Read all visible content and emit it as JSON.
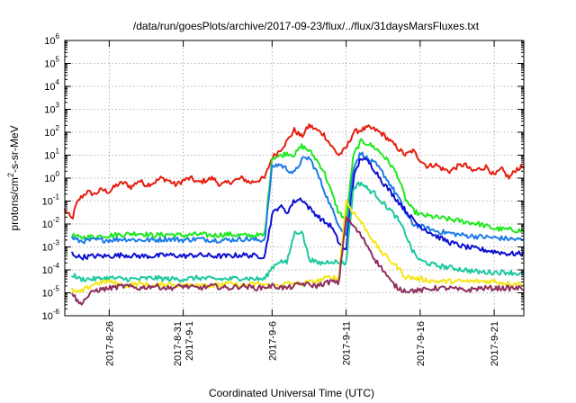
{
  "chart_data": {
    "type": "line",
    "title": "/data/run/goesPlots/archive/2017-09-23/flux/../flux/31daysMarsFluxes.txt",
    "xlabel": "Coordinated Universal Time (UTC)",
    "ylabel": "protons/cm2-s-sr-MeV",
    "ylabel_parts": {
      "base": "protons/cm",
      "sup": "2",
      "rest": "-s-sr-MeV"
    },
    "y_scale": "log",
    "ylim_exp": [
      -6,
      6
    ],
    "y_ticks": [
      {
        "exp": -6,
        "base": "10",
        "sup": "-6"
      },
      {
        "exp": -5,
        "base": "10",
        "sup": "-5"
      },
      {
        "exp": -4,
        "base": "10",
        "sup": "-4"
      },
      {
        "exp": -3,
        "base": "10",
        "sup": "-3"
      },
      {
        "exp": -2,
        "base": "10",
        "sup": "-2"
      },
      {
        "exp": -1,
        "base": "10",
        "sup": "-1"
      },
      {
        "exp": 0,
        "base": "10",
        "sup": "0"
      },
      {
        "exp": 1,
        "base": "10",
        "sup": "1"
      },
      {
        "exp": 2,
        "base": "10",
        "sup": "2"
      },
      {
        "exp": 3,
        "base": "10",
        "sup": "3"
      },
      {
        "exp": 4,
        "base": "10",
        "sup": "4"
      },
      {
        "exp": 5,
        "base": "10",
        "sup": "5"
      },
      {
        "exp": 6,
        "base": "10",
        "sup": "6"
      }
    ],
    "xlim": [
      "2017-08-23",
      "2017-09-23"
    ],
    "x_ticks": [
      {
        "date": "2017-08-26",
        "label": "2017-8-26"
      },
      {
        "date": "2017-08-31",
        "label": "2017-8-31",
        "label2": "2017-9-1"
      },
      {
        "date": "2017-09-06",
        "label": "2017-9-6"
      },
      {
        "date": "2017-09-11",
        "label": "2017-9-11"
      },
      {
        "date": "2017-09-16",
        "label": "2017-9-16"
      },
      {
        "date": "2017-09-21",
        "label": "2017-9-21"
      }
    ],
    "grid": true,
    "series": [
      {
        "color": "#e51e10",
        "x": [
          "2017-08-23T00:00",
          "2017-08-23T06:00",
          "2017-08-23T12:00",
          "2017-08-23T18:00",
          "2017-08-24T00:00",
          "2017-08-24T12:00",
          "2017-08-25T00:00",
          "2017-08-25T12:00",
          "2017-08-26T00:00",
          "2017-08-26T12:00",
          "2017-08-27T00:00",
          "2017-08-27T12:00",
          "2017-08-28T00:00",
          "2017-08-28T12:00",
          "2017-08-29T00:00",
          "2017-08-29T12:00",
          "2017-08-30T00:00",
          "2017-08-30T12:00",
          "2017-08-31T00:00",
          "2017-08-31T12:00",
          "2017-09-01T00:00",
          "2017-09-01T12:00",
          "2017-09-02T00:00",
          "2017-09-02T12:00",
          "2017-09-03T00:00",
          "2017-09-03T12:00",
          "2017-09-04T00:00",
          "2017-09-04T12:00",
          "2017-09-05T00:00",
          "2017-09-05T12:00",
          "2017-09-06T00:00",
          "2017-09-06T12:00",
          "2017-09-07T00:00",
          "2017-09-07T12:00",
          "2017-09-08T00:00",
          "2017-09-08T12:00",
          "2017-09-09T00:00",
          "2017-09-09T12:00",
          "2017-09-10T00:00",
          "2017-09-10T12:00",
          "2017-09-11T00:00",
          "2017-09-11T12:00",
          "2017-09-12T00:00",
          "2017-09-12T12:00",
          "2017-09-13T00:00",
          "2017-09-13T12:00",
          "2017-09-14T00:00",
          "2017-09-14T12:00",
          "2017-09-15T00:00",
          "2017-09-15T12:00",
          "2017-09-16T00:00",
          "2017-09-16T12:00",
          "2017-09-17T00:00",
          "2017-09-17T12:00",
          "2017-09-18T00:00",
          "2017-09-18T12:00",
          "2017-09-19T00:00",
          "2017-09-19T12:00",
          "2017-09-20T00:00",
          "2017-09-20T12:00",
          "2017-09-21T00:00",
          "2017-09-21T12:00",
          "2017-09-22T00:00",
          "2017-09-22T12:00",
          "2017-09-23T00:00"
        ],
        "log10_values": [
          -1.4,
          -1.6,
          -1.8,
          -1.2,
          -0.9,
          -0.6,
          -0.7,
          -0.5,
          -0.6,
          -0.3,
          -0.2,
          -0.4,
          -0.1,
          -0.3,
          -0.2,
          0.0,
          -0.1,
          -0.3,
          -0.1,
          0.0,
          -0.2,
          -0.1,
          0.0,
          -0.3,
          -0.2,
          -0.1,
          0.0,
          -0.2,
          -0.1,
          0.0,
          0.9,
          1.2,
          1.6,
          2.1,
          1.8,
          2.3,
          2.1,
          1.9,
          1.4,
          1.0,
          1.3,
          2.0,
          2.1,
          2.2,
          2.1,
          1.9,
          1.6,
          1.3,
          1.0,
          1.2,
          0.8,
          0.5,
          0.6,
          0.4,
          0.3,
          0.5,
          0.6,
          0.3,
          0.4,
          0.5,
          0.1,
          0.4,
          0.0,
          0.4,
          0.5
        ]
      },
      {
        "color": "#1ee81e",
        "x": [
          "2017-08-23T12:00",
          "2017-08-24T00:00",
          "2017-08-25T00:00",
          "2017-08-26T00:00",
          "2017-08-27T00:00",
          "2017-08-28T00:00",
          "2017-08-29T00:00",
          "2017-08-30T00:00",
          "2017-08-31T00:00",
          "2017-09-01T00:00",
          "2017-09-02T00:00",
          "2017-09-03T00:00",
          "2017-09-04T00:00",
          "2017-09-05T00:00",
          "2017-09-05T12:00",
          "2017-09-06T00:00",
          "2017-09-06T12:00",
          "2017-09-07T00:00",
          "2017-09-07T12:00",
          "2017-09-08T00:00",
          "2017-09-08T12:00",
          "2017-09-09T00:00",
          "2017-09-09T12:00",
          "2017-09-10T00:00",
          "2017-09-10T12:00",
          "2017-09-11T00:00",
          "2017-09-11T12:00",
          "2017-09-12T00:00",
          "2017-09-12T12:00",
          "2017-09-13T00:00",
          "2017-09-13T12:00",
          "2017-09-14T00:00",
          "2017-09-14T12:00",
          "2017-09-15T00:00",
          "2017-09-15T12:00",
          "2017-09-16T00:00",
          "2017-09-17T00:00",
          "2017-09-18T00:00",
          "2017-09-19T00:00",
          "2017-09-20T00:00",
          "2017-09-21T00:00",
          "2017-09-22T00:00",
          "2017-09-23T00:00"
        ],
        "log10_values": [
          -2.5,
          -2.6,
          -2.55,
          -2.5,
          -2.45,
          -2.4,
          -2.5,
          -2.45,
          -2.5,
          -2.45,
          -2.5,
          -2.45,
          -2.5,
          -2.5,
          -2.5,
          0.9,
          0.95,
          1.1,
          1.0,
          1.4,
          1.2,
          0.8,
          0.3,
          -0.6,
          -1.5,
          -1.8,
          1.0,
          1.6,
          1.5,
          1.3,
          1.0,
          0.6,
          0.1,
          -0.9,
          -1.4,
          -1.6,
          -1.7,
          -1.8,
          -1.9,
          -2.0,
          -2.2,
          -2.25,
          -2.3
        ]
      },
      {
        "color": "#1e7be8",
        "x": [
          "2017-08-23T12:00",
          "2017-08-24T00:00",
          "2017-08-25T00:00",
          "2017-08-26T00:00",
          "2017-08-27T00:00",
          "2017-08-28T00:00",
          "2017-08-29T00:00",
          "2017-08-30T00:00",
          "2017-08-31T00:00",
          "2017-09-01T00:00",
          "2017-09-02T00:00",
          "2017-09-03T00:00",
          "2017-09-04T00:00",
          "2017-09-05T00:00",
          "2017-09-05T12:00",
          "2017-09-06T00:00",
          "2017-09-06T12:00",
          "2017-09-07T00:00",
          "2017-09-07T12:00",
          "2017-09-08T00:00",
          "2017-09-08T12:00",
          "2017-09-09T00:00",
          "2017-09-09T12:00",
          "2017-09-10T00:00",
          "2017-09-10T12:00",
          "2017-09-11T00:00",
          "2017-09-11T12:00",
          "2017-09-12T00:00",
          "2017-09-12T12:00",
          "2017-09-13T00:00",
          "2017-09-13T12:00",
          "2017-09-14T00:00",
          "2017-09-14T12:00",
          "2017-09-15T00:00",
          "2017-09-15T12:00",
          "2017-09-16T00:00",
          "2017-09-17T00:00",
          "2017-09-18T00:00",
          "2017-09-19T00:00",
          "2017-09-20T00:00",
          "2017-09-21T00:00",
          "2017-09-22T00:00",
          "2017-09-23T00:00"
        ],
        "log10_values": [
          -2.6,
          -2.75,
          -2.7,
          -2.7,
          -2.65,
          -2.7,
          -2.7,
          -2.65,
          -2.7,
          -2.65,
          -2.7,
          -2.7,
          -2.65,
          -2.7,
          -2.7,
          0.5,
          0.6,
          0.4,
          0.2,
          0.8,
          0.9,
          0.3,
          -0.5,
          -1.3,
          -2.0,
          -2.5,
          0.5,
          1.1,
          0.8,
          0.6,
          0.2,
          -0.3,
          -0.8,
          -1.5,
          -2.0,
          -2.1,
          -2.3,
          -2.4,
          -2.5,
          -2.55,
          -2.6,
          -2.65,
          -2.7
        ]
      },
      {
        "color": "#1010d0",
        "x": [
          "2017-08-23T12:00",
          "2017-08-24T00:00",
          "2017-08-25T00:00",
          "2017-08-26T00:00",
          "2017-08-27T00:00",
          "2017-08-28T00:00",
          "2017-08-29T00:00",
          "2017-08-30T00:00",
          "2017-08-31T00:00",
          "2017-09-01T00:00",
          "2017-09-02T00:00",
          "2017-09-03T00:00",
          "2017-09-04T00:00",
          "2017-09-05T00:00",
          "2017-09-05T12:00",
          "2017-09-06T00:00",
          "2017-09-06T12:00",
          "2017-09-07T00:00",
          "2017-09-07T12:00",
          "2017-09-08T00:00",
          "2017-09-08T12:00",
          "2017-09-09T00:00",
          "2017-09-09T12:00",
          "2017-09-10T00:00",
          "2017-09-10T12:00",
          "2017-09-11T00:00",
          "2017-09-11T12:00",
          "2017-09-12T00:00",
          "2017-09-12T12:00",
          "2017-09-13T00:00",
          "2017-09-13T12:00",
          "2017-09-14T00:00",
          "2017-09-14T12:00",
          "2017-09-15T00:00",
          "2017-09-15T12:00",
          "2017-09-16T00:00",
          "2017-09-17T00:00",
          "2017-09-18T00:00",
          "2017-09-19T00:00",
          "2017-09-20T00:00",
          "2017-09-21T00:00",
          "2017-09-22T00:00",
          "2017-09-23T00:00"
        ],
        "log10_values": [
          -3.3,
          -3.45,
          -3.4,
          -3.4,
          -3.35,
          -3.4,
          -3.4,
          -3.35,
          -3.4,
          -3.35,
          -3.4,
          -3.4,
          -3.35,
          -3.4,
          -3.4,
          -1.6,
          -1.2,
          -1.5,
          -1.0,
          -0.9,
          -1.3,
          -1.6,
          -1.9,
          -2.1,
          -2.8,
          -3.2,
          0.0,
          0.9,
          0.7,
          0.3,
          -0.2,
          -0.6,
          -1.0,
          -1.4,
          -1.8,
          -2.1,
          -2.5,
          -2.8,
          -3.0,
          -3.1,
          -3.2,
          -3.3,
          -3.3
        ]
      },
      {
        "color": "#1ec8a0",
        "x": [
          "2017-08-23T12:00",
          "2017-08-24T00:00",
          "2017-08-25T00:00",
          "2017-08-26T00:00",
          "2017-08-27T00:00",
          "2017-08-28T00:00",
          "2017-08-29T00:00",
          "2017-08-30T00:00",
          "2017-08-31T00:00",
          "2017-09-01T00:00",
          "2017-09-02T00:00",
          "2017-09-03T00:00",
          "2017-09-04T00:00",
          "2017-09-05T00:00",
          "2017-09-05T12:00",
          "2017-09-06T00:00",
          "2017-09-06T12:00",
          "2017-09-07T00:00",
          "2017-09-07T12:00",
          "2017-09-08T00:00",
          "2017-09-08T12:00",
          "2017-09-09T00:00",
          "2017-09-09T12:00",
          "2017-09-10T00:00",
          "2017-09-10T12:00",
          "2017-09-11T00:00",
          "2017-09-11T12:00",
          "2017-09-12T00:00",
          "2017-09-12T12:00",
          "2017-09-13T00:00",
          "2017-09-13T12:00",
          "2017-09-14T00:00",
          "2017-09-14T12:00",
          "2017-09-15T00:00",
          "2017-09-15T12:00",
          "2017-09-16T00:00",
          "2017-09-17T00:00",
          "2017-09-18T00:00",
          "2017-09-19T00:00",
          "2017-09-20T00:00",
          "2017-09-21T00:00",
          "2017-09-22T00:00",
          "2017-09-23T00:00"
        ],
        "log10_values": [
          -4.2,
          -4.4,
          -4.4,
          -4.35,
          -4.4,
          -4.4,
          -4.35,
          -4.4,
          -4.4,
          -4.35,
          -4.4,
          -4.4,
          -4.35,
          -4.4,
          -4.4,
          -3.9,
          -3.6,
          -3.7,
          -2.4,
          -2.3,
          -3.5,
          -3.7,
          -3.7,
          -3.6,
          -3.7,
          -3.7,
          -0.4,
          -0.2,
          -0.5,
          -0.7,
          -1.1,
          -1.4,
          -1.8,
          -2.4,
          -3.2,
          -3.6,
          -3.8,
          -3.9,
          -4.0,
          -4.1,
          -4.1,
          -4.1,
          -4.2
        ]
      },
      {
        "color": "#f5e616",
        "x": [
          "2017-08-23T12:00",
          "2017-08-24T00:00",
          "2017-08-25T00:00",
          "2017-08-26T00:00",
          "2017-08-27T00:00",
          "2017-08-28T00:00",
          "2017-08-29T00:00",
          "2017-08-30T00:00",
          "2017-08-31T00:00",
          "2017-09-01T00:00",
          "2017-09-02T00:00",
          "2017-09-03T00:00",
          "2017-09-04T00:00",
          "2017-09-05T00:00",
          "2017-09-06T00:00",
          "2017-09-07T00:00",
          "2017-09-08T00:00",
          "2017-09-09T00:00",
          "2017-09-10T00:00",
          "2017-09-10T12:00",
          "2017-09-11T00:00",
          "2017-09-11T12:00",
          "2017-09-12T00:00",
          "2017-09-12T12:00",
          "2017-09-13T00:00",
          "2017-09-13T12:00",
          "2017-09-14T00:00",
          "2017-09-14T12:00",
          "2017-09-15T00:00",
          "2017-09-16T00:00",
          "2017-09-17T00:00",
          "2017-09-18T00:00",
          "2017-09-19T00:00",
          "2017-09-20T00:00",
          "2017-09-21T00:00",
          "2017-09-22T00:00",
          "2017-09-23T00:00"
        ],
        "log10_values": [
          -4.9,
          -5.0,
          -4.6,
          -4.5,
          -4.7,
          -4.6,
          -4.7,
          -4.6,
          -4.7,
          -4.6,
          -4.7,
          -4.6,
          -4.7,
          -4.6,
          -4.7,
          -4.6,
          -4.6,
          -4.5,
          -4.3,
          -4.4,
          -1.0,
          -1.5,
          -1.9,
          -2.4,
          -2.9,
          -3.3,
          -3.6,
          -3.9,
          -4.3,
          -4.4,
          -4.5,
          -4.5,
          -4.5,
          -4.5,
          -4.5,
          -4.6,
          -4.6
        ]
      },
      {
        "color": "#8e2f5e",
        "x": [
          "2017-08-23T12:00",
          "2017-08-24T00:00",
          "2017-08-25T00:00",
          "2017-08-26T00:00",
          "2017-08-27T00:00",
          "2017-08-28T00:00",
          "2017-08-29T00:00",
          "2017-08-30T00:00",
          "2017-08-31T00:00",
          "2017-09-01T00:00",
          "2017-09-02T00:00",
          "2017-09-03T00:00",
          "2017-09-04T00:00",
          "2017-09-05T00:00",
          "2017-09-06T00:00",
          "2017-09-07T00:00",
          "2017-09-08T00:00",
          "2017-09-09T00:00",
          "2017-09-10T00:00",
          "2017-09-10T12:00",
          "2017-09-11T00:00",
          "2017-09-11T12:00",
          "2017-09-12T00:00",
          "2017-09-12T12:00",
          "2017-09-13T00:00",
          "2017-09-13T12:00",
          "2017-09-14T00:00",
          "2017-09-14T12:00",
          "2017-09-15T00:00",
          "2017-09-16T00:00",
          "2017-09-17T00:00",
          "2017-09-18T00:00",
          "2017-09-19T00:00",
          "2017-09-20T00:00",
          "2017-09-21T00:00",
          "2017-09-22T00:00",
          "2017-09-23T00:00"
        ],
        "log10_values": [
          -5.0,
          -5.5,
          -4.9,
          -4.8,
          -4.7,
          -4.8,
          -4.7,
          -4.8,
          -4.7,
          -4.8,
          -4.7,
          -4.8,
          -4.7,
          -4.8,
          -4.7,
          -4.8,
          -4.6,
          -4.7,
          -4.5,
          -4.6,
          -1.7,
          -2.1,
          -2.5,
          -3.0,
          -3.6,
          -4.0,
          -4.5,
          -4.8,
          -4.9,
          -4.9,
          -4.8,
          -4.8,
          -4.9,
          -4.8,
          -4.8,
          -4.8,
          -4.8
        ]
      }
    ]
  }
}
